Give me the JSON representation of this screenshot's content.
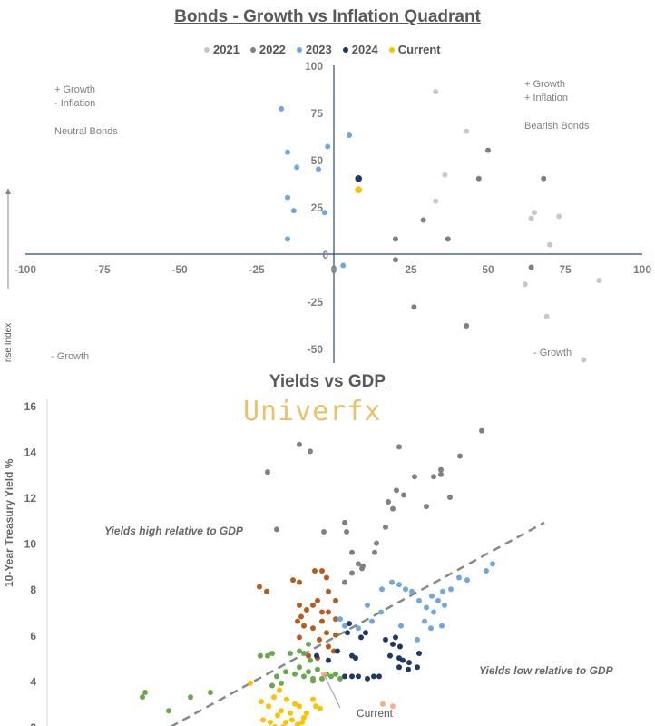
{
  "chart_data": [
    {
      "type": "scatter",
      "title": "Bonds - Growth vs Inflation Quadrant",
      "ylabel": "rise Index",
      "xlim": [
        -100,
        100
      ],
      "ylim": [
        -50,
        100
      ],
      "x_ticks": [
        "-100",
        "-75",
        "-50",
        "-25",
        "0",
        "25",
        "50",
        "75",
        "100"
      ],
      "y_ticks": [
        "-50",
        "-25",
        "0",
        "25",
        "50",
        "75",
        "100"
      ],
      "legend_position": "top",
      "quadrant_labels": {
        "top_left": [
          "+ Growth",
          "- Inflation",
          "Neutral Bonds"
        ],
        "top_right": [
          "+ Growth",
          "+ Inflation",
          "Bearish Bonds"
        ],
        "bottom_left": [
          "- Growth"
        ],
        "bottom_right": [
          "- Growth"
        ]
      },
      "series": [
        {
          "name": "2021",
          "color": "#c8c8c8",
          "points": [
            [
              33,
              86
            ],
            [
              43,
              65
            ],
            [
              36,
              42
            ],
            [
              33,
              28
            ],
            [
              65,
              22
            ],
            [
              64,
              19
            ],
            [
              73,
              20
            ],
            [
              70,
              5
            ],
            [
              62,
              -16
            ],
            [
              86,
              -14
            ],
            [
              69,
              -33
            ],
            [
              81,
              -56
            ]
          ]
        },
        {
          "name": "2022",
          "color": "#7f7f7f",
          "points": [
            [
              50,
              55
            ],
            [
              47,
              40
            ],
            [
              68,
              40
            ],
            [
              29,
              18
            ],
            [
              37,
              8
            ],
            [
              20,
              8
            ],
            [
              20,
              -3
            ],
            [
              26,
              -28
            ],
            [
              43,
              -38
            ],
            [
              64,
              -7
            ]
          ]
        },
        {
          "name": "2023",
          "color": "#6fa8dc",
          "points": [
            [
              -17,
              77
            ],
            [
              -15,
              54
            ],
            [
              -12,
              46
            ],
            [
              -5,
              45
            ],
            [
              -2,
              57
            ],
            [
              5,
              63
            ],
            [
              -15,
              30
            ],
            [
              -13,
              23
            ],
            [
              -3,
              22
            ],
            [
              -15,
              8
            ],
            [
              3,
              -6
            ]
          ]
        },
        {
          "name": "2024",
          "color": "#1f3864",
          "points": [
            [
              8,
              40
            ]
          ]
        },
        {
          "name": "Current",
          "color": "#ffc000",
          "points": [
            [
              8,
              34
            ]
          ]
        }
      ]
    },
    {
      "type": "scatter",
      "title": "Yields vs GDP",
      "ylabel": "10-Year Treasury Yield %",
      "ylim": [
        2,
        16
      ],
      "y_ticks": [
        "2",
        "4",
        "6",
        "8",
        "10",
        "12",
        "14",
        "16"
      ],
      "annotations": {
        "high": "Yields high relative to GDP",
        "low": "Yields low relative to GDP",
        "current": "Current"
      },
      "trend_line": {
        "from": [
          188,
          2
        ],
        "to": [
          600,
          10.9
        ]
      },
      "series": [
        {
          "color": "#808080",
          "points": [
            [
              295,
              13.1
            ],
            [
              330,
              14.3
            ],
            [
              342,
              14.0
            ],
            [
              440,
              14.2
            ],
            [
              305,
              10.6
            ],
            [
              357,
              10.5
            ],
            [
              380,
              10.9
            ],
            [
              382,
              10.5
            ],
            [
              388,
              9.6
            ],
            [
              395,
              9.1
            ],
            [
              400,
              9.0
            ],
            [
              388,
              8.7
            ],
            [
              413,
              9.6
            ],
            [
              425,
              10.7
            ],
            [
              428,
              11.8
            ],
            [
              433,
              11.5
            ],
            [
              437,
              12.3
            ],
            [
              445,
              12.1
            ],
            [
              457,
              12.9
            ],
            [
              470,
              11.6
            ],
            [
              478,
              12.9
            ],
            [
              486,
              13.0
            ],
            [
              486,
              13.2
            ],
            [
              496,
              12.0
            ],
            [
              507,
              13.8
            ],
            [
              531,
              14.9
            ],
            [
              415,
              10.0
            ],
            [
              380,
              8.3
            ],
            [
              399,
              8.9
            ]
          ]
        },
        {
          "color": "#b85c1e",
          "points": [
            [
              286,
              8.1
            ],
            [
              294,
              7.9
            ],
            [
              323,
              8.4
            ],
            [
              330,
              8.3
            ],
            [
              347,
              8.8
            ],
            [
              355,
              8.8
            ],
            [
              360,
              8.5
            ],
            [
              362,
              7.9
            ],
            [
              350,
              7.5
            ],
            [
              345,
              7.3
            ],
            [
              338,
              7.1
            ],
            [
              330,
              7.3
            ],
            [
              355,
              7.0
            ],
            [
              362,
              7.0
            ],
            [
              370,
              7.5
            ],
            [
              328,
              6.6
            ],
            [
              335,
              6.4
            ],
            [
              355,
              6.6
            ],
            [
              360,
              6.1
            ],
            [
              370,
              6.0
            ],
            [
              330,
              5.9
            ],
            [
              345,
              6.3
            ],
            [
              352,
              5.8
            ],
            [
              362,
              5.5
            ],
            [
              368,
              5.3
            ],
            [
              340,
              5.1
            ],
            [
              350,
              5.0
            ],
            [
              332,
              6.8
            ],
            [
              370,
              6.7
            ]
          ]
        },
        {
          "color": "#6fa8dc",
          "points": [
            [
              442,
              6.4
            ],
            [
              432,
              8.3
            ],
            [
              440,
              8.2
            ],
            [
              447,
              8.0
            ],
            [
              454,
              7.9
            ],
            [
              462,
              7.5
            ],
            [
              470,
              7.2
            ],
            [
              476,
              7.7
            ],
            [
              483,
              7.5
            ],
            [
              488,
              7.9
            ],
            [
              497,
              8.0
            ],
            [
              506,
              8.5
            ],
            [
              515,
              8.4
            ],
            [
              536,
              8.8
            ],
            [
              543,
              9.1
            ],
            [
              421,
              8.0
            ],
            [
              405,
              7.3
            ],
            [
              410,
              6.6
            ],
            [
              380,
              6.4
            ],
            [
              395,
              6.3
            ],
            [
              420,
              7.0
            ],
            [
              468,
              6.6
            ],
            [
              478,
              7.0
            ],
            [
              490,
              7.3
            ],
            [
              475,
              6.3
            ],
            [
              487,
              6.4
            ],
            [
              375,
              6.7
            ],
            [
              460,
              5.8
            ]
          ]
        },
        {
          "color": "#1f3864",
          "points": [
            [
              385,
              6.5
            ],
            [
              383,
              6.1
            ],
            [
              398,
              5.9
            ],
            [
              403,
              6.1
            ],
            [
              425,
              5.8
            ],
            [
              433,
              5.6
            ],
            [
              436,
              5.9
            ],
            [
              441,
              5.5
            ],
            [
              430,
              5.1
            ],
            [
              440,
              5.0
            ],
            [
              444,
              4.9
            ],
            [
              451,
              4.8
            ],
            [
              460,
              4.6
            ],
            [
              462,
              5.2
            ],
            [
              349,
              5.1
            ],
            [
              362,
              4.9
            ],
            [
              372,
              5.3
            ],
            [
              388,
              5.1
            ],
            [
              392,
              5.0
            ],
            [
              380,
              4.2
            ],
            [
              388,
              4.2
            ],
            [
              395,
              4.2
            ],
            [
              405,
              4.1
            ],
            [
              412,
              4.2
            ],
            [
              418,
              4.2
            ],
            [
              440,
              4.6
            ],
            [
              450,
              4.5
            ]
          ]
        },
        {
          "color": "#6aa84f",
          "points": [
            [
              157,
              3.3
            ],
            [
              160,
              3.5
            ],
            [
              186,
              2.7
            ],
            [
              210,
              3.3
            ],
            [
              232,
              3.5
            ],
            [
              287,
              5.1
            ],
            [
              295,
              5.1
            ],
            [
              300,
              5.2
            ],
            [
              310,
              3.9
            ],
            [
              305,
              4.2
            ],
            [
              315,
              4.4
            ],
            [
              325,
              4.3
            ],
            [
              330,
              4.6
            ],
            [
              335,
              4.2
            ],
            [
              340,
              4.4
            ],
            [
              345,
              4.0
            ],
            [
              355,
              4.1
            ],
            [
              360,
              4.3
            ],
            [
              365,
              4.2
            ],
            [
              370,
              4.3
            ],
            [
              375,
              4.1
            ],
            [
              335,
              5.2
            ],
            [
              342,
              4.9
            ],
            [
              350,
              4.5
            ],
            [
              340,
              5.6
            ],
            [
              330,
              5.3
            ],
            [
              320,
              5.2
            ],
            [
              300,
              3.8
            ],
            [
              345,
              4.1
            ]
          ]
        },
        {
          "color": "#ffc000",
          "points": [
            [
              276,
              3.9
            ],
            [
              288,
              3.1
            ],
            [
              296,
              2.9
            ],
            [
              302,
              3.3
            ],
            [
              306,
              2.5
            ],
            [
              310,
              2.7
            ],
            [
              315,
              2.2
            ],
            [
              320,
              2.6
            ],
            [
              325,
              3.0
            ],
            [
              330,
              2.9
            ],
            [
              335,
              2.4
            ],
            [
              345,
              3.2
            ],
            [
              348,
              2.9
            ],
            [
              353,
              2.8
            ],
            [
              290,
              2.3
            ],
            [
              298,
              2.2
            ],
            [
              312,
              2.0
            ],
            [
              322,
              2.3
            ],
            [
              328,
              2.1
            ],
            [
              333,
              2.2
            ],
            [
              308,
              3.6
            ],
            [
              316,
              3.2
            ],
            [
              303,
              2.0
            ],
            [
              338,
              2.6
            ]
          ]
        },
        {
          "color": "#f4b183",
          "points": [
            [
              357,
              4.3
            ],
            [
              422,
              3.0
            ],
            [
              433,
              2.9
            ]
          ]
        }
      ]
    }
  ]
}
